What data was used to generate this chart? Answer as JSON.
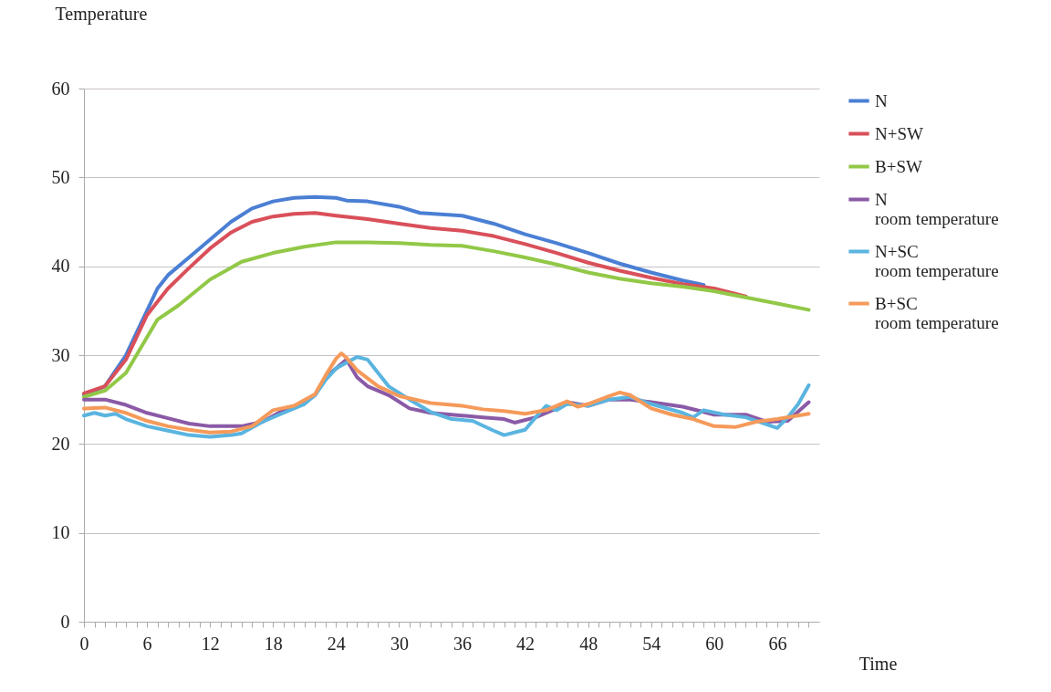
{
  "chart_data": {
    "type": "line",
    "xlabel": "Time",
    "ylabel": "Temperature",
    "xlim": [
      0,
      70
    ],
    "ylim": [
      0,
      60
    ],
    "yticks": [
      0,
      10,
      20,
      30,
      40,
      50,
      60
    ],
    "grid": "y",
    "legend": "right",
    "line_style": "solid",
    "marker": "none",
    "xticks": [
      0,
      {
        "value": 1,
        "label": null
      },
      {
        "value": 2,
        "label": null
      },
      {
        "value": 3,
        "label": null
      },
      {
        "value": 4,
        "label": null
      },
      {
        "value": 5,
        "label": null
      },
      6,
      {
        "value": 7,
        "label": null
      },
      {
        "value": 8,
        "label": null
      },
      {
        "value": 9,
        "label": null
      },
      {
        "value": 10,
        "label": null
      },
      {
        "value": 11,
        "label": null
      },
      12,
      {
        "value": 13,
        "label": null
      },
      {
        "value": 14,
        "label": null
      },
      {
        "value": 15,
        "label": null
      },
      {
        "value": 16,
        "label": null
      },
      {
        "value": 17,
        "label": null
      },
      18,
      {
        "value": 19,
        "label": null
      },
      {
        "value": 20,
        "label": null
      },
      {
        "value": 21,
        "label": null
      },
      {
        "value": 22,
        "label": null
      },
      {
        "value": 23,
        "label": null
      },
      24,
      {
        "value": 25,
        "label": null
      },
      {
        "value": 26,
        "label": null
      },
      {
        "value": 27,
        "label": null
      },
      {
        "value": 28,
        "label": null
      },
      {
        "value": 29,
        "label": null
      },
      30,
      {
        "value": 31,
        "label": null
      },
      {
        "value": 32,
        "label": null
      },
      {
        "value": 33,
        "label": null
      },
      {
        "value": 34,
        "label": null
      },
      {
        "value": 35,
        "label": null
      },
      36,
      {
        "value": 37,
        "label": null
      },
      {
        "value": 38,
        "label": null
      },
      {
        "value": 39,
        "label": null
      },
      {
        "value": 40,
        "label": null
      },
      {
        "value": 41,
        "label": null
      },
      42,
      {
        "value": 43,
        "label": null
      },
      {
        "value": 44,
        "label": null
      },
      {
        "value": 45,
        "label": null
      },
      {
        "value": 46,
        "label": null
      },
      {
        "value": 47,
        "label": null
      },
      48,
      {
        "value": 49,
        "label": null
      },
      {
        "value": 50,
        "label": null
      },
      {
        "value": 51,
        "label": null
      },
      {
        "value": 52,
        "label": null
      },
      {
        "value": 53,
        "label": null
      },
      54,
      {
        "value": 55,
        "label": null
      },
      {
        "value": 56,
        "label": null
      },
      {
        "value": 57,
        "label": null
      },
      {
        "value": 58,
        "label": null
      },
      {
        "value": 59,
        "label": null
      },
      60,
      {
        "value": 61,
        "label": null
      },
      {
        "value": 62,
        "label": null
      },
      {
        "value": 63,
        "label": null
      },
      {
        "value": 64,
        "label": null
      },
      {
        "value": 65,
        "label": null
      },
      66,
      {
        "value": 67,
        "label": null
      },
      {
        "value": 68,
        "label": null
      },
      {
        "value": 69,
        "label": null
      }
    ],
    "series": [
      {
        "name": "N",
        "color": "#4a7fd4",
        "x": [
          0,
          2,
          4,
          5,
          6,
          7,
          8,
          10,
          12,
          14,
          16,
          18,
          20,
          22,
          24,
          25,
          27,
          30,
          32,
          36,
          39,
          42,
          45,
          48,
          51,
          54,
          57,
          59
        ],
        "values": [
          25.5,
          26.5,
          30,
          32.5,
          35,
          37.5,
          39,
          41,
          43,
          45,
          46.5,
          47.3,
          47.7,
          47.8,
          47.7,
          47.4,
          47.3,
          46.7,
          46,
          45.7,
          44.8,
          43.6,
          42.6,
          41.5,
          40.3,
          39.3,
          38.4,
          37.9
        ]
      },
      {
        "name": "N+SW",
        "color": "#d9505a",
        "x": [
          0,
          2,
          4,
          6,
          7,
          8,
          10,
          12,
          14,
          16,
          18,
          20,
          22,
          24,
          27,
          30,
          33,
          36,
          39,
          42,
          45,
          48,
          51,
          54,
          57,
          60,
          63
        ],
        "values": [
          25.7,
          26.5,
          29.5,
          34.5,
          36,
          37.5,
          39.8,
          42,
          43.8,
          45,
          45.6,
          45.9,
          46,
          45.7,
          45.3,
          44.8,
          44.3,
          44,
          43.4,
          42.5,
          41.5,
          40.4,
          39.5,
          38.7,
          38,
          37.5,
          36.6
        ]
      },
      {
        "name": "B+SW",
        "color": "#92c847",
        "x": [
          0,
          2,
          4,
          6,
          7,
          9,
          12,
          15,
          18,
          21,
          24,
          27,
          30,
          33,
          36,
          39,
          42,
          45,
          48,
          51,
          54,
          57,
          60,
          63,
          66,
          69
        ],
        "values": [
          25.3,
          26,
          28,
          32,
          34,
          35.6,
          38.5,
          40.5,
          41.5,
          42.2,
          42.7,
          42.7,
          42.6,
          42.4,
          42.3,
          41.7,
          41,
          40.2,
          39.3,
          38.6,
          38.1,
          37.7,
          37.2,
          36.5,
          35.8,
          35.1
        ]
      },
      {
        "name": "N\nroom temperature",
        "color": "#8a5aa6",
        "x": [
          0,
          2,
          4,
          6,
          8,
          10,
          12,
          15,
          17,
          19,
          21,
          22,
          23,
          24,
          25,
          26,
          27,
          29,
          31,
          33,
          36,
          38,
          40,
          41,
          43,
          45,
          46,
          48,
          50,
          52,
          54,
          57,
          60,
          63,
          65,
          67,
          69
        ],
        "values": [
          25,
          25,
          24.4,
          23.5,
          22.9,
          22.3,
          22,
          22,
          22.5,
          23.8,
          24.7,
          25.5,
          27.5,
          28.5,
          29.5,
          27.5,
          26.5,
          25.5,
          24,
          23.5,
          23.2,
          23,
          22.8,
          22.4,
          23,
          24,
          24.7,
          24.3,
          25,
          25,
          24.7,
          24.2,
          23.3,
          23.3,
          22.5,
          22.6,
          24.7
        ]
      },
      {
        "name": "N+SC\nroom temperature",
        "color": "#5ab4e0",
        "x": [
          0,
          1,
          2,
          3,
          4,
          6,
          8,
          10,
          12,
          14,
          15,
          17,
          19,
          21,
          22,
          23,
          24,
          26,
          27,
          28,
          29,
          31,
          33,
          35,
          37,
          39,
          40,
          42,
          43,
          44,
          45,
          46,
          48,
          50,
          52,
          54,
          57,
          58,
          59,
          61,
          63,
          65,
          66,
          67,
          68,
          69
        ],
        "values": [
          23.2,
          23.5,
          23.2,
          23.4,
          22.8,
          22,
          21.5,
          21,
          20.8,
          21,
          21.2,
          22.5,
          23.5,
          24.5,
          25.5,
          27.2,
          28.5,
          29.8,
          29.5,
          28,
          26.5,
          25,
          23.6,
          22.8,
          22.6,
          21.5,
          21,
          21.6,
          23,
          24.3,
          23.8,
          24.5,
          24.3,
          25,
          25.3,
          24.5,
          23.5,
          23,
          23.8,
          23.3,
          23,
          22.2,
          21.8,
          23,
          24.5,
          26.6
        ]
      },
      {
        "name": " B+SC\nroom temperature",
        "color": "#f59a5a",
        "x": [
          0,
          2,
          4,
          6,
          8,
          10,
          12,
          14,
          16,
          18,
          20,
          22,
          23,
          24,
          24.5,
          25,
          26,
          28,
          30,
          33,
          36,
          38,
          40,
          42,
          44,
          46,
          47,
          48,
          50,
          51,
          52,
          54,
          56,
          58,
          60,
          62,
          64,
          66,
          69
        ],
        "values": [
          24,
          24.1,
          23.5,
          22.6,
          22,
          21.6,
          21.3,
          21.4,
          22,
          23.8,
          24.3,
          25.6,
          27.7,
          29.6,
          30.2,
          29.7,
          28.3,
          26.5,
          25.4,
          24.6,
          24.3,
          23.9,
          23.7,
          23.4,
          23.8,
          24.8,
          24.2,
          24.5,
          25.4,
          25.8,
          25.5,
          24,
          23.3,
          22.8,
          22,
          21.9,
          22.5,
          22.8,
          23.4
        ]
      }
    ]
  }
}
